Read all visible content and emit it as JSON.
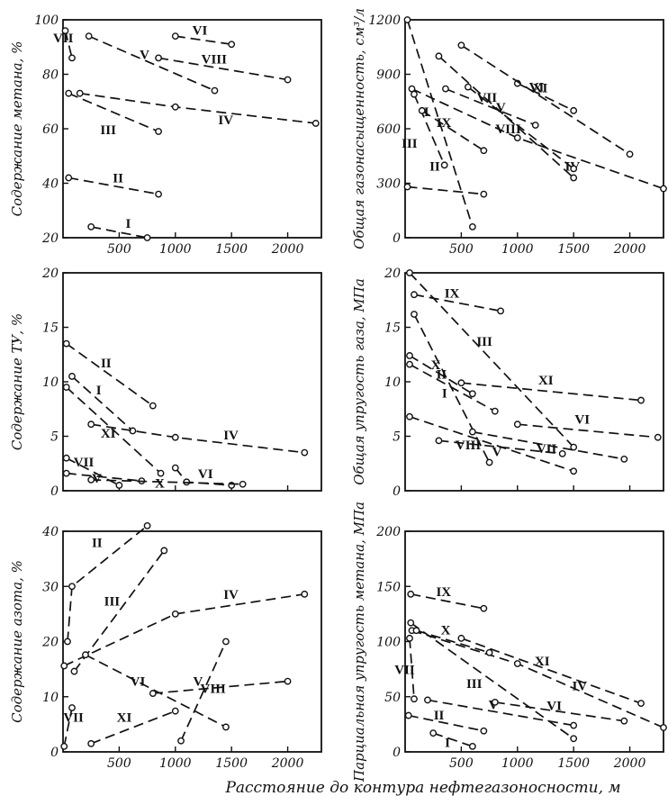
{
  "figure": {
    "xlabel": "Расстояние до контура нефтегазоносности, м"
  },
  "chart_data": [
    {
      "type": "line",
      "ylabel": "Содержание метана, %",
      "xlim": [
        0,
        2300
      ],
      "ylim": [
        20,
        100
      ],
      "xticks": [
        "500",
        "1000",
        "1500",
        "2000"
      ],
      "yticks": [
        "20",
        "40",
        "60",
        "80",
        "100"
      ],
      "series": [
        {
          "name": "I",
          "x": [
            250,
            750
          ],
          "y": [
            24,
            20
          ]
        },
        {
          "name": "II",
          "x": [
            50,
            850
          ],
          "y": [
            42,
            36
          ]
        },
        {
          "name": "III",
          "x": [
            50,
            850
          ],
          "y": [
            73,
            59
          ]
        },
        {
          "name": "IV",
          "x": [
            150,
            1000,
            2250
          ],
          "y": [
            73,
            68,
            62
          ]
        },
        {
          "name": "V",
          "x": [
            230,
            1350
          ],
          "y": [
            94,
            74
          ]
        },
        {
          "name": "VI",
          "x": [
            1000,
            1500
          ],
          "y": [
            94,
            91
          ]
        },
        {
          "name": "VII",
          "x": [
            20,
            80
          ],
          "y": [
            96,
            86
          ]
        },
        {
          "name": "VIII",
          "x": [
            850,
            2000
          ],
          "y": [
            86,
            78
          ]
        }
      ]
    },
    {
      "type": "line",
      "ylabel": "Общая газонасыщенность, см³/л",
      "xlim": [
        0,
        2300
      ],
      "ylim": [
        0,
        1200
      ],
      "xticks": [
        "500",
        "1000",
        "1500",
        "2000"
      ],
      "yticks": [
        "0",
        "300",
        "600",
        "900",
        "1200"
      ],
      "series": [
        {
          "name": "I",
          "x": [
            20,
            600
          ],
          "y": [
            1200,
            60
          ]
        },
        {
          "name": "II",
          "x": [
            20,
            700
          ],
          "y": [
            280,
            240
          ]
        },
        {
          "name": "III",
          "x": [
            80,
            350
          ],
          "y": [
            790,
            400
          ]
        },
        {
          "name": "IV",
          "x": [
            60,
            1000,
            2300
          ],
          "y": [
            820,
            550,
            270
          ]
        },
        {
          "name": "V",
          "x": [
            300,
            1500
          ],
          "y": [
            1000,
            330
          ]
        },
        {
          "name": "VI",
          "x": [
            1000,
            1500
          ],
          "y": [
            850,
            700
          ]
        },
        {
          "name": "VII",
          "x": [
            360,
            1160
          ],
          "y": [
            820,
            620
          ]
        },
        {
          "name": "VIII",
          "x": [
            560,
            1500
          ],
          "y": [
            830,
            380
          ]
        },
        {
          "name": "IX",
          "x": [
            150,
            700
          ],
          "y": [
            700,
            480
          ]
        },
        {
          "name": "XI",
          "x": [
            500,
            2000
          ],
          "y": [
            1060,
            460
          ]
        }
      ]
    },
    {
      "type": "line",
      "ylabel": "Содержание ТУ, %",
      "xlim": [
        0,
        2300
      ],
      "ylim": [
        0,
        20
      ],
      "xticks": [],
      "yticks": [
        "0",
        "5",
        "10",
        "15",
        "20"
      ],
      "series": [
        {
          "name": "I",
          "x": [
            80,
            620
          ],
          "y": [
            10.5,
            5.5
          ]
        },
        {
          "name": "II",
          "x": [
            30,
            800
          ],
          "y": [
            13.5,
            7.8
          ]
        },
        {
          "name": "IV",
          "x": [
            250,
            1000,
            2150
          ],
          "y": [
            6.1,
            4.9,
            3.5
          ]
        },
        {
          "name": "V",
          "x": [
            30,
            700
          ],
          "y": [
            1.6,
            0.9
          ]
        },
        {
          "name": "VI",
          "x": [
            1000,
            1100,
            1500
          ],
          "y": [
            2.1,
            0.8,
            0.5
          ]
        },
        {
          "name": "VII",
          "x": [
            30,
            500
          ],
          "y": [
            3.0,
            0.5
          ]
        },
        {
          "name": "X",
          "x": [
            250,
            1600
          ],
          "y": [
            1.0,
            0.6
          ]
        },
        {
          "name": "XI",
          "x": [
            30,
            870
          ],
          "y": [
            9.5,
            1.6
          ]
        }
      ]
    },
    {
      "type": "line",
      "ylabel": "Общая упругость газа, МПа",
      "xlim": [
        0,
        2300
      ],
      "ylim": [
        0,
        20
      ],
      "xticks": [],
      "yticks": [
        "0",
        "5",
        "10",
        "15",
        "20"
      ],
      "series": [
        {
          "name": "I",
          "x": [
            80,
            750
          ],
          "y": [
            16.2,
            2.6
          ]
        },
        {
          "name": "II",
          "x": [
            40,
            800
          ],
          "y": [
            11.6,
            7.3
          ]
        },
        {
          "name": "III",
          "x": [
            40,
            1500
          ],
          "y": [
            20.0,
            4.0
          ]
        },
        {
          "name": "V",
          "x": [
            300,
            1400
          ],
          "y": [
            4.6,
            3.4
          ]
        },
        {
          "name": "VI",
          "x": [
            1000,
            2250
          ],
          "y": [
            6.1,
            4.9
          ]
        },
        {
          "name": "VII",
          "x": [
            600,
            1950
          ],
          "y": [
            5.4,
            2.9
          ]
        },
        {
          "name": "VIII",
          "x": [
            40,
            1500
          ],
          "y": [
            6.8,
            1.8
          ]
        },
        {
          "name": "IX",
          "x": [
            80,
            850
          ],
          "y": [
            18.0,
            16.5
          ]
        },
        {
          "name": "X",
          "x": [
            40,
            600
          ],
          "y": [
            12.4,
            8.9
          ]
        },
        {
          "name": "XI",
          "x": [
            500,
            2100
          ],
          "y": [
            9.9,
            8.3
          ]
        }
      ]
    },
    {
      "type": "line",
      "ylabel": "Содержание азота, %",
      "xlim": [
        0,
        2300
      ],
      "ylim": [
        0,
        40
      ],
      "xticks": [
        "500",
        "1000",
        "1500",
        "2000"
      ],
      "yticks": [
        "0",
        "10",
        "20",
        "30",
        "40"
      ],
      "series": [
        {
          "name": "II",
          "x": [
            40,
            80,
            750
          ],
          "y": [
            20.0,
            30.0,
            41.0
          ]
        },
        {
          "name": "III",
          "x": [
            100,
            900
          ],
          "y": [
            14.6,
            36.5
          ]
        },
        {
          "name": "IV",
          "x": [
            10,
            1000,
            2150
          ],
          "y": [
            15.6,
            25.0,
            28.6
          ]
        },
        {
          "name": "V",
          "x": [
            1050,
            1450
          ],
          "y": [
            2.0,
            20.0
          ]
        },
        {
          "name": "VI",
          "x": [
            200,
            1450
          ],
          "y": [
            17.6,
            4.5
          ]
        },
        {
          "name": "VII",
          "x": [
            10,
            80
          ],
          "y": [
            1.0,
            8.0
          ]
        },
        {
          "name": "VIII",
          "x": [
            800,
            2000
          ],
          "y": [
            10.6,
            12.8
          ]
        },
        {
          "name": "XI",
          "x": [
            250,
            1000
          ],
          "y": [
            1.5,
            7.4
          ]
        }
      ]
    },
    {
      "type": "line",
      "ylabel": "Парциальная упругость метана, МПа",
      "xlim": [
        0,
        2300
      ],
      "ylim": [
        0,
        200
      ],
      "xticks": [
        "500",
        "1000",
        "1500",
        "2000"
      ],
      "yticks": [
        "0",
        "50",
        "100",
        "150",
        "200"
      ],
      "series": [
        {
          "name": "I",
          "x": [
            250,
            600
          ],
          "y": [
            17,
            5
          ]
        },
        {
          "name": "II",
          "x": [
            30,
            700
          ],
          "y": [
            33,
            19
          ]
        },
        {
          "name": "III",
          "x": [
            50,
            1500
          ],
          "y": [
            117,
            12
          ]
        },
        {
          "name": "IV",
          "x": [
            60,
            1000,
            2300
          ],
          "y": [
            110,
            80,
            22
          ]
        },
        {
          "name": "V",
          "x": [
            200,
            1500
          ],
          "y": [
            47,
            24
          ]
        },
        {
          "name": "VI",
          "x": [
            800,
            1950
          ],
          "y": [
            45,
            28
          ]
        },
        {
          "name": "VII",
          "x": [
            40,
            80
          ],
          "y": [
            103,
            48
          ]
        },
        {
          "name": "IX",
          "x": [
            50,
            700
          ],
          "y": [
            143,
            130
          ]
        },
        {
          "name": "X",
          "x": [
            100,
            750
          ],
          "y": [
            110,
            90
          ]
        },
        {
          "name": "XI",
          "x": [
            500,
            2100
          ],
          "y": [
            103,
            44
          ]
        }
      ]
    }
  ]
}
